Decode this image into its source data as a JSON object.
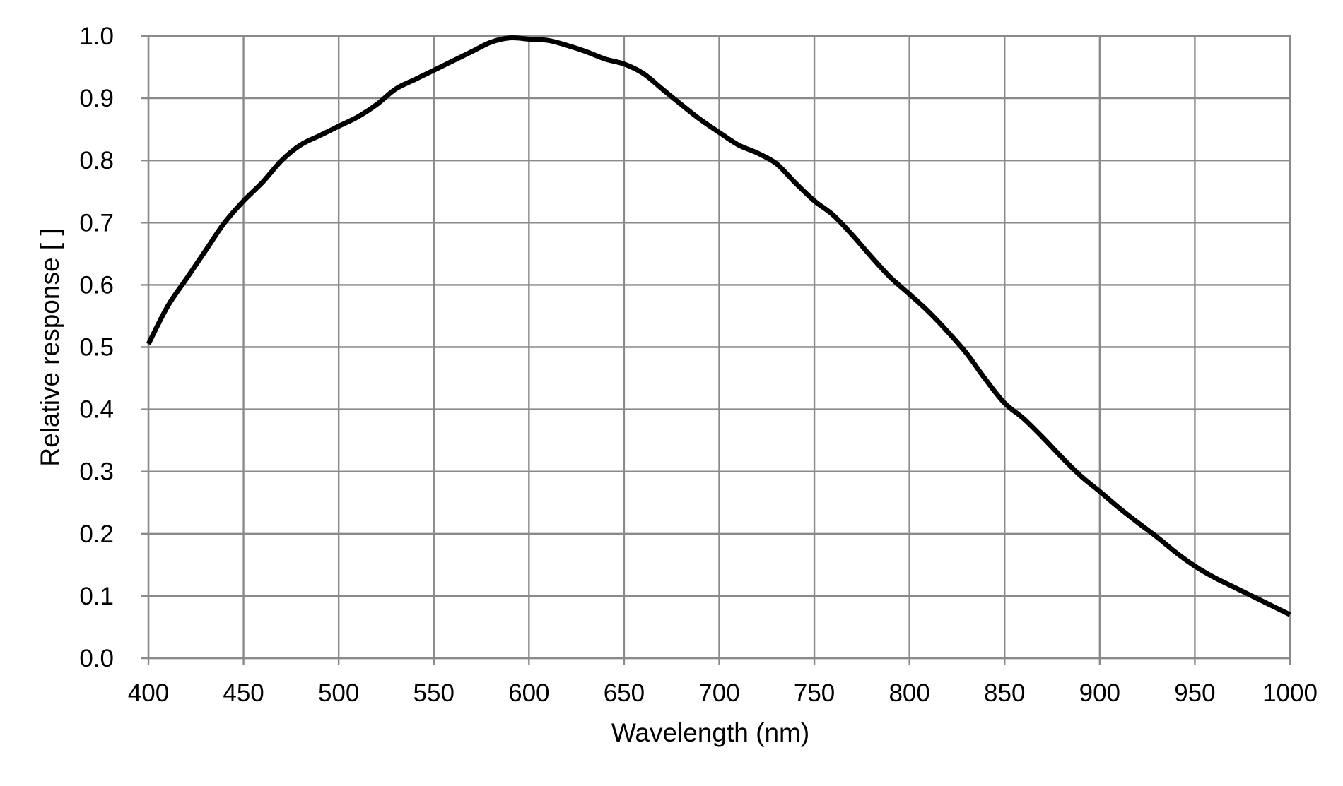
{
  "chart_data": {
    "type": "line",
    "title": "",
    "xlabel": "Wavelength (nm)",
    "ylabel": "Relative response [ ]",
    "xlim": [
      400,
      1000
    ],
    "ylim": [
      0.0,
      1.0
    ],
    "x_ticks": [
      "400",
      "450",
      "500",
      "550",
      "600",
      "650",
      "700",
      "750",
      "800",
      "850",
      "900",
      "950",
      "1000"
    ],
    "y_ticks": [
      "0.0",
      "0.1",
      "0.2",
      "0.3",
      "0.4",
      "0.5",
      "0.6",
      "0.7",
      "0.8",
      "0.9",
      "1.0"
    ],
    "grid": true,
    "legend": "none",
    "line_color": "#000000",
    "grid_color": "#8a8a8a",
    "series": [
      {
        "x": [
          400,
          410,
          420,
          430,
          440,
          450,
          460,
          470,
          480,
          490,
          500,
          510,
          520,
          530,
          540,
          550,
          560,
          570,
          580,
          590,
          600,
          610,
          620,
          630,
          640,
          650,
          660,
          670,
          680,
          690,
          700,
          710,
          720,
          730,
          740,
          750,
          760,
          770,
          780,
          790,
          800,
          810,
          820,
          830,
          840,
          850,
          860,
          870,
          880,
          890,
          900,
          910,
          920,
          930,
          940,
          950,
          960,
          970,
          980,
          990,
          1000
        ],
        "y": [
          0.505,
          0.565,
          0.61,
          0.655,
          0.7,
          0.735,
          0.765,
          0.8,
          0.825,
          0.84,
          0.855,
          0.87,
          0.89,
          0.915,
          0.93,
          0.945,
          0.96,
          0.975,
          0.99,
          0.997,
          0.995,
          0.993,
          0.985,
          0.975,
          0.963,
          0.955,
          0.94,
          0.915,
          0.89,
          0.866,
          0.845,
          0.825,
          0.812,
          0.795,
          0.764,
          0.735,
          0.712,
          0.68,
          0.645,
          0.612,
          0.585,
          0.557,
          0.525,
          0.49,
          0.448,
          0.41,
          0.385,
          0.355,
          0.323,
          0.293,
          0.268,
          0.242,
          0.218,
          0.195,
          0.17,
          0.148,
          0.13,
          0.115,
          0.1,
          0.085,
          0.07
        ]
      }
    ]
  }
}
